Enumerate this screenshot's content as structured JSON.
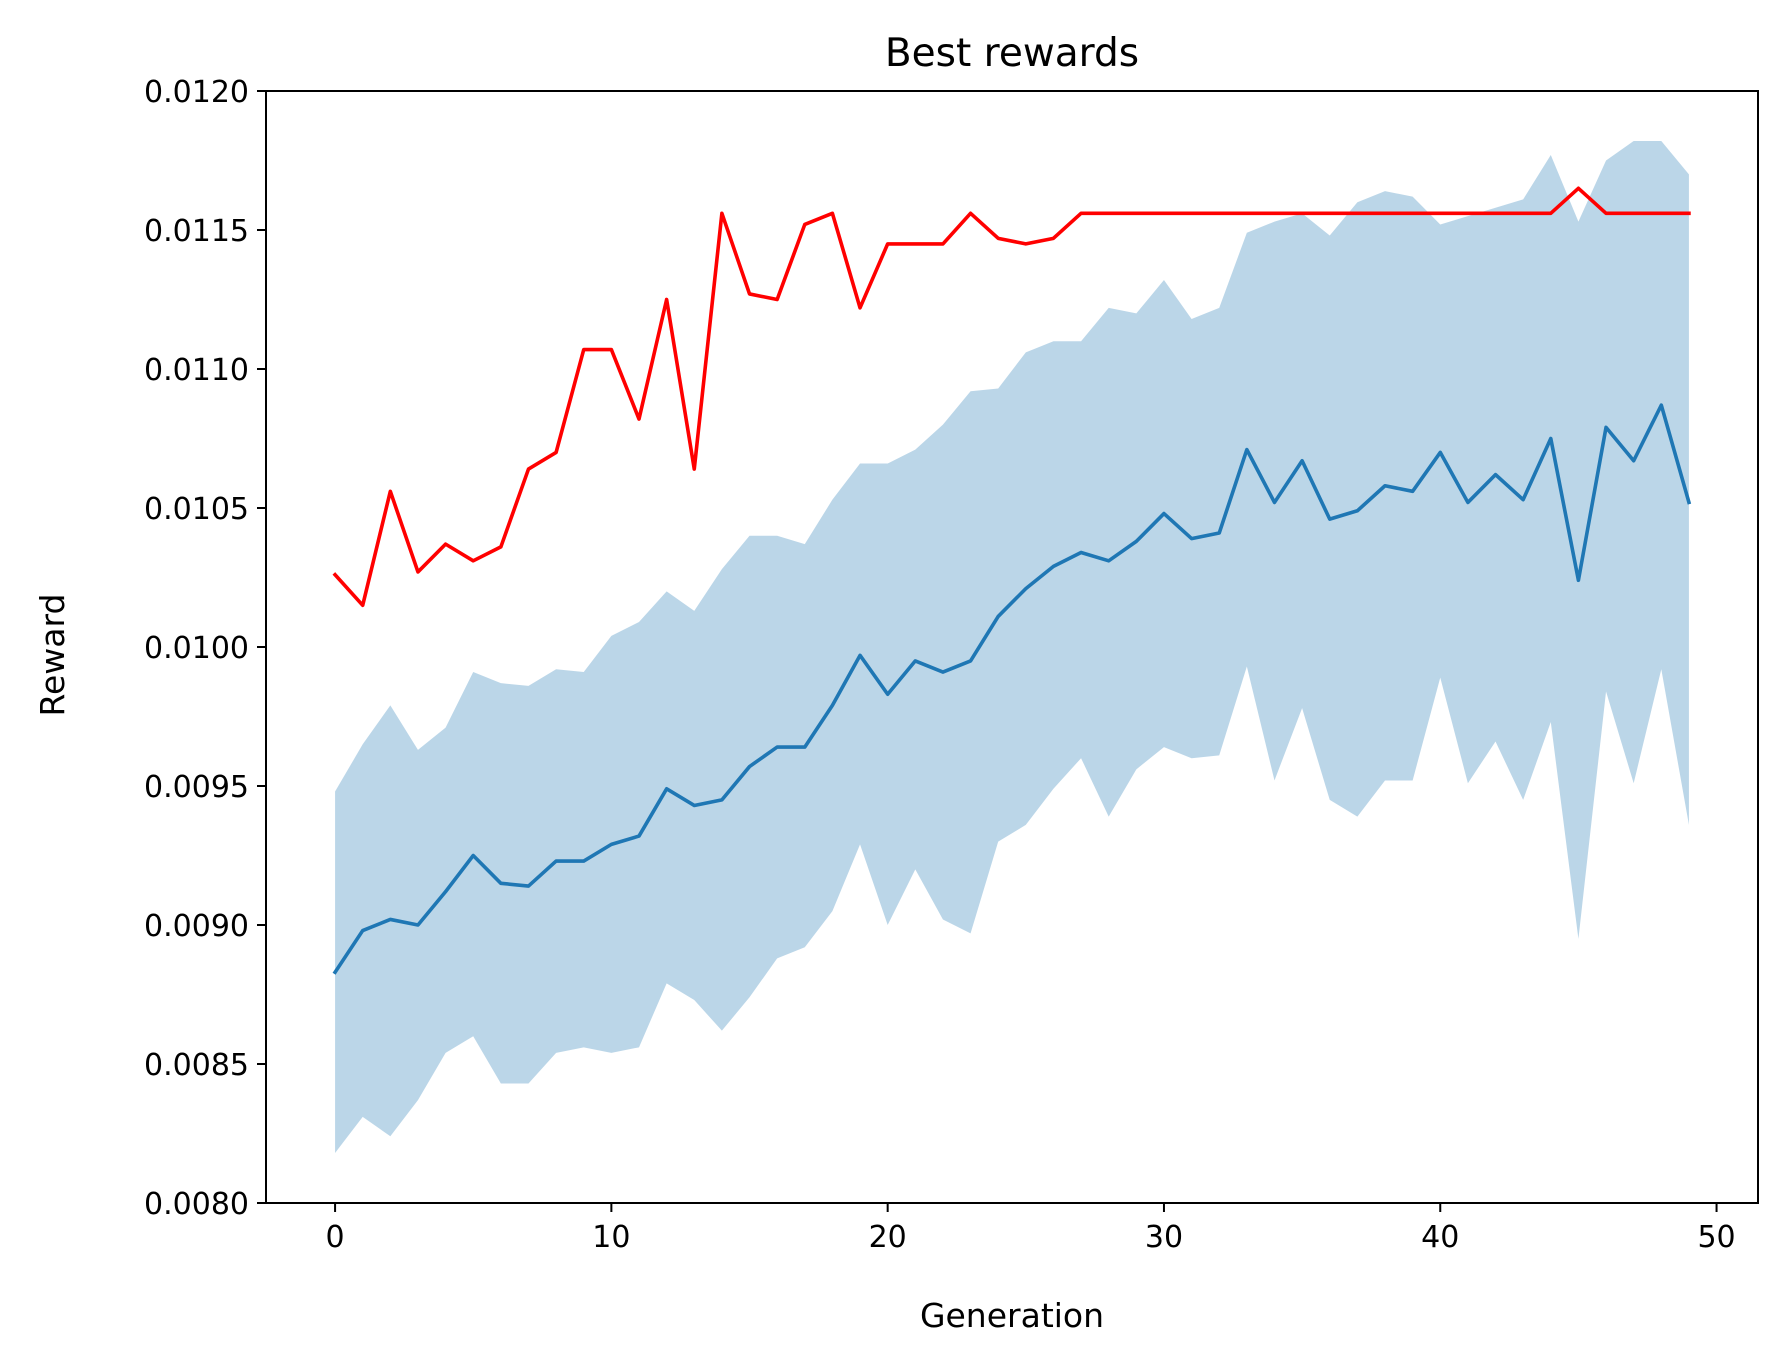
{
  "chart_data": {
    "type": "line",
    "title": "Best rewards",
    "xlabel": "Generation",
    "ylabel": "Reward",
    "xlim": [
      -2.5,
      51.5
    ],
    "ylim": [
      0.008,
      0.012
    ],
    "xticks": [
      0,
      10,
      20,
      30,
      40,
      50
    ],
    "yticks": [
      0.008,
      0.0085,
      0.009,
      0.0095,
      0.01,
      0.0105,
      0.011,
      0.0115,
      0.012
    ],
    "xtick_labels": [
      "0",
      "10",
      "20",
      "30",
      "40",
      "50"
    ],
    "ytick_labels": [
      "0.0080",
      "0.0085",
      "0.0090",
      "0.0095",
      "0.0100",
      "0.0105",
      "0.0110",
      "0.0115",
      "0.0120"
    ],
    "grid": false,
    "x": [
      0,
      1,
      2,
      3,
      4,
      5,
      6,
      7,
      8,
      9,
      10,
      11,
      12,
      13,
      14,
      15,
      16,
      17,
      18,
      19,
      20,
      21,
      22,
      23,
      24,
      25,
      26,
      27,
      28,
      29,
      30,
      31,
      32,
      33,
      34,
      35,
      36,
      37,
      38,
      39,
      40,
      41,
      42,
      43,
      44,
      45,
      46,
      47,
      48,
      49
    ],
    "series": [
      {
        "color": "#ff0000",
        "values": [
          0.01026,
          0.01015,
          0.01056,
          0.01027,
          0.01037,
          0.01031,
          0.01036,
          0.01064,
          0.0107,
          0.01107,
          0.01107,
          0.01082,
          0.01125,
          0.01064,
          0.01156,
          0.01127,
          0.01125,
          0.01152,
          0.01156,
          0.01122,
          0.01145,
          0.01145,
          0.01145,
          0.01156,
          0.01147,
          0.01145,
          0.01147,
          0.01156,
          0.01156,
          0.01156,
          0.01156,
          0.01156,
          0.01156,
          0.01156,
          0.01156,
          0.01156,
          0.01156,
          0.01156,
          0.01156,
          0.01156,
          0.01156,
          0.01156,
          0.01156,
          0.01156,
          0.01156,
          0.01165,
          0.01156,
          0.01156,
          0.01156,
          0.01156
        ]
      },
      {
        "color": "#1f77b4",
        "values": [
          0.00883,
          0.00898,
          0.00902,
          0.009,
          0.00912,
          0.00925,
          0.00915,
          0.00914,
          0.00923,
          0.00923,
          0.00929,
          0.00932,
          0.00949,
          0.00943,
          0.00945,
          0.00957,
          0.00964,
          0.00964,
          0.00979,
          0.00997,
          0.00983,
          0.00995,
          0.00991,
          0.00995,
          0.01011,
          0.01021,
          0.01029,
          0.01034,
          0.01031,
          0.01038,
          0.01048,
          0.01039,
          0.01041,
          0.01071,
          0.01052,
          0.01067,
          0.01046,
          0.01049,
          0.01058,
          0.01056,
          0.0107,
          0.01052,
          0.01062,
          0.01053,
          0.01075,
          0.01024,
          0.01079,
          0.01067,
          0.01087,
          0.01052
        ],
        "band_upper": [
          0.00948,
          0.00965,
          0.00979,
          0.00963,
          0.00971,
          0.00991,
          0.00987,
          0.00986,
          0.00992,
          0.00991,
          0.01004,
          0.01009,
          0.0102,
          0.01013,
          0.01028,
          0.0104,
          0.0104,
          0.01037,
          0.01053,
          0.01066,
          0.01066,
          0.01071,
          0.0108,
          0.01092,
          0.01093,
          0.01106,
          0.0111,
          0.0111,
          0.01122,
          0.0112,
          0.01132,
          0.01118,
          0.01122,
          0.01149,
          0.01153,
          0.01156,
          0.01148,
          0.0116,
          0.01164,
          0.01162,
          0.01152,
          0.01155,
          0.01158,
          0.01161,
          0.01177,
          0.01153,
          0.01175,
          0.01182,
          0.01182,
          0.0117
        ],
        "band_lower": [
          0.00818,
          0.00831,
          0.00824,
          0.00837,
          0.00854,
          0.0086,
          0.00843,
          0.00843,
          0.00854,
          0.00856,
          0.00854,
          0.00856,
          0.00879,
          0.00873,
          0.00862,
          0.00874,
          0.00888,
          0.00892,
          0.00905,
          0.00929,
          0.009,
          0.0092,
          0.00902,
          0.00897,
          0.0093,
          0.00936,
          0.00949,
          0.0096,
          0.00939,
          0.00956,
          0.00964,
          0.0096,
          0.00961,
          0.00993,
          0.00952,
          0.00978,
          0.00945,
          0.00939,
          0.00952,
          0.00952,
          0.00989,
          0.00951,
          0.00966,
          0.00945,
          0.00973,
          0.00895,
          0.00984,
          0.00951,
          0.00992,
          0.00936
        ]
      }
    ]
  }
}
